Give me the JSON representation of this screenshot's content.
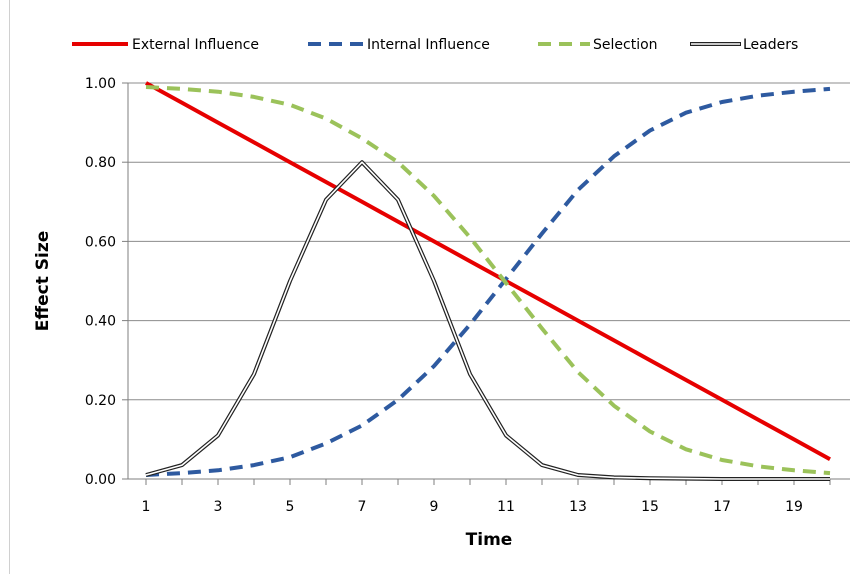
{
  "chart_data": {
    "type": "line",
    "title": "",
    "xlabel": "Time",
    "ylabel": "Effect Size",
    "x": [
      1,
      2,
      3,
      4,
      5,
      6,
      7,
      8,
      9,
      10,
      11,
      12,
      13,
      14,
      15,
      16,
      17,
      18,
      19,
      20
    ],
    "xlim": [
      1,
      20
    ],
    "ylim": [
      0,
      1
    ],
    "x_ticks": [
      1,
      3,
      5,
      7,
      9,
      11,
      13,
      15,
      17,
      19
    ],
    "y_ticks": [
      "0.00",
      "0.20",
      "0.40",
      "0.60",
      "0.80",
      "1.00"
    ],
    "grid": "horizontal",
    "legend_position": "top",
    "series": [
      {
        "name": "External Influence",
        "color": "#e60000",
        "style": "solid",
        "values": [
          1.0,
          0.95,
          0.9,
          0.85,
          0.8,
          0.75,
          0.7,
          0.65,
          0.6,
          0.55,
          0.5,
          0.45,
          0.4,
          0.35,
          0.3,
          0.25,
          0.2,
          0.15,
          0.1,
          0.05
        ]
      },
      {
        "name": "Internal Influence",
        "color": "#2e5aa0",
        "style": "dashed",
        "values": [
          0.01,
          0.015,
          0.022,
          0.035,
          0.055,
          0.09,
          0.135,
          0.2,
          0.285,
          0.39,
          0.505,
          0.62,
          0.73,
          0.815,
          0.88,
          0.925,
          0.952,
          0.968,
          0.978,
          0.985
        ]
      },
      {
        "name": "Selection",
        "color": "#9bc25a",
        "style": "dashed",
        "values": [
          0.99,
          0.985,
          0.978,
          0.965,
          0.945,
          0.91,
          0.86,
          0.8,
          0.715,
          0.61,
          0.495,
          0.38,
          0.27,
          0.185,
          0.12,
          0.075,
          0.048,
          0.032,
          0.022,
          0.015
        ]
      },
      {
        "name": "Leaders",
        "color": "#222222",
        "style": "double",
        "values": [
          0.01,
          0.035,
          0.11,
          0.265,
          0.5,
          0.705,
          0.8,
          0.705,
          0.5,
          0.265,
          0.11,
          0.035,
          0.01,
          0.004,
          0.002,
          0.001,
          0.0,
          0.0,
          0.0,
          0.0
        ]
      }
    ]
  }
}
